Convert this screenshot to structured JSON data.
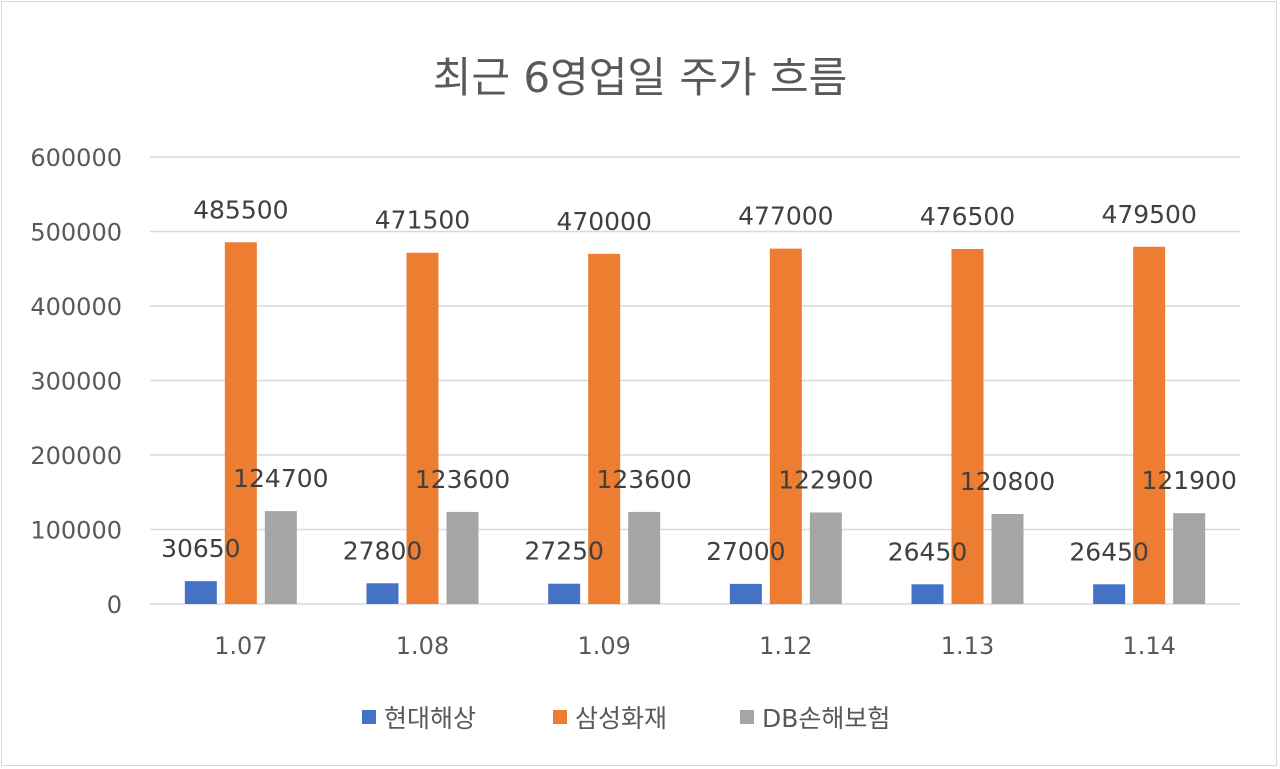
{
  "chart_data": {
    "type": "bar",
    "title": "최근 6영업일 주가 흐름",
    "xlabel": "",
    "ylabel": "",
    "categories": [
      "1.07",
      "1.08",
      "1.09",
      "1.12",
      "1.13",
      "1.14"
    ],
    "series": [
      {
        "name": "현대해상",
        "color": "#4472C4",
        "values": [
          30650,
          27800,
          27250,
          27000,
          26450,
          26450
        ]
      },
      {
        "name": "삼성화재",
        "color": "#ED7D31",
        "values": [
          485500,
          471500,
          470000,
          477000,
          476500,
          479500
        ]
      },
      {
        "name": "DB손해보험",
        "color": "#A5A5A5",
        "values": [
          124700,
          123600,
          123600,
          122900,
          120800,
          121900
        ]
      }
    ],
    "ylim": [
      0,
      600000
    ],
    "yticks": [
      0,
      100000,
      200000,
      300000,
      400000,
      500000,
      600000
    ],
    "grid": true,
    "data_labels": true,
    "legend_position": "bottom"
  }
}
